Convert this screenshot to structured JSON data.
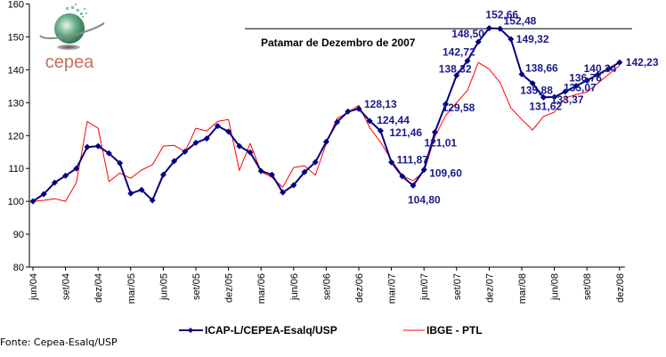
{
  "chart_data": {
    "type": "line",
    "title": "",
    "xlabel": "",
    "ylabel": "",
    "ylim": [
      80,
      160
    ],
    "yticks": [
      80,
      90,
      100,
      110,
      120,
      130,
      140,
      150,
      160
    ],
    "grid": false,
    "legend_position": "bottom",
    "x_tick_labels": [
      "jun/04",
      "set/04",
      "dez/04",
      "mar/05",
      "jun/05",
      "set/05",
      "dez/05",
      "mar/06",
      "jun/06",
      "set/06",
      "dez/06",
      "mar/07",
      "jun/07",
      "set/07",
      "dez/07",
      "mar/08",
      "jun/08",
      "set/08",
      "dez/08"
    ],
    "x_tick_every_months": 3,
    "n_months": 55,
    "series": [
      {
        "name": "ICAP-L/CEPEA-Esalq/USP",
        "color": "#000080",
        "marker": "diamond",
        "values": [
          100,
          102.2,
          105.7,
          107.8,
          110,
          116.5,
          116.8,
          114.6,
          111.6,
          102.4,
          103.5,
          100.3,
          108.1,
          112.2,
          115.1,
          117.8,
          119.1,
          122.9,
          121.2,
          116.8,
          114.9,
          109.2,
          108.1,
          102.7,
          104.9,
          108.9,
          111.9,
          118.1,
          124.1,
          127.3,
          128.13,
          124.44,
          121.46,
          111.87,
          107.6,
          104.8,
          109.6,
          121.01,
          129.58,
          138.32,
          142.72,
          148.5,
          152.66,
          152.48,
          149.32,
          138.66,
          135.88,
          131.62,
          131.7,
          133.37,
          135.07,
          136.76,
          138.5,
          140.34,
          142.23
        ]
      },
      {
        "name": "IBGE - PTL",
        "color": "#ff0000",
        "marker": "none",
        "values": [
          100,
          100.3,
          100.8,
          100,
          105.7,
          124.3,
          122.2,
          106.0,
          108.6,
          107.0,
          109.5,
          111.1,
          116.8,
          117.0,
          115.1,
          122.2,
          121.4,
          124.3,
          124.9,
          109.4,
          117.6,
          109.0,
          107.3,
          104.3,
          110.3,
          110.8,
          107.9,
          117.6,
          125.2,
          127.0,
          129.2,
          122.4,
          118.0,
          112.6,
          107.8,
          106.3,
          109.0,
          119.6,
          126.1,
          130.0,
          133.7,
          142.2,
          140.2,
          136.1,
          128.4,
          124.9,
          121.7,
          125.8,
          127.1,
          131.4,
          132.5,
          133.2,
          135.9,
          138.6,
          141.3
        ]
      }
    ],
    "data_labels": [
      {
        "series": 0,
        "index": 30,
        "text": "128,13"
      },
      {
        "series": 0,
        "index": 31,
        "text": "124,44"
      },
      {
        "series": 0,
        "index": 32,
        "text": "121,46"
      },
      {
        "series": 0,
        "index": 33,
        "text": "111,87"
      },
      {
        "series": 0,
        "index": 35,
        "text": "104,80"
      },
      {
        "series": 0,
        "index": 36,
        "text": "109,60"
      },
      {
        "series": 0,
        "index": 37,
        "text": "121,01"
      },
      {
        "series": 0,
        "index": 38,
        "text": "129,58"
      },
      {
        "series": 0,
        "index": 39,
        "text": "138,32"
      },
      {
        "series": 0,
        "index": 40,
        "text": "142,72"
      },
      {
        "series": 0,
        "index": 41,
        "text": "148,50"
      },
      {
        "series": 0,
        "index": 42,
        "text": "152,66"
      },
      {
        "series": 0,
        "index": 43,
        "text": "152,48"
      },
      {
        "series": 0,
        "index": 44,
        "text": "149,32"
      },
      {
        "series": 0,
        "index": 45,
        "text": "138,66"
      },
      {
        "series": 0,
        "index": 46,
        "text": "135,88"
      },
      {
        "series": 0,
        "index": 47,
        "text": "131,62"
      },
      {
        "series": 0,
        "index": 49,
        "text": "133,37"
      },
      {
        "series": 0,
        "index": 50,
        "text": "135,07"
      },
      {
        "series": 0,
        "index": 51,
        "text": "136,76"
      },
      {
        "series": 0,
        "index": 53,
        "text": "140,34"
      },
      {
        "series": 0,
        "index": 54,
        "text": "142,23"
      }
    ],
    "reference_line": {
      "value": 152.5,
      "label": "Patamar de Dezembro de 2007"
    }
  },
  "logo": {
    "text": "cepea"
  },
  "source": "Fonte: Cepea-Esalq/USP"
}
